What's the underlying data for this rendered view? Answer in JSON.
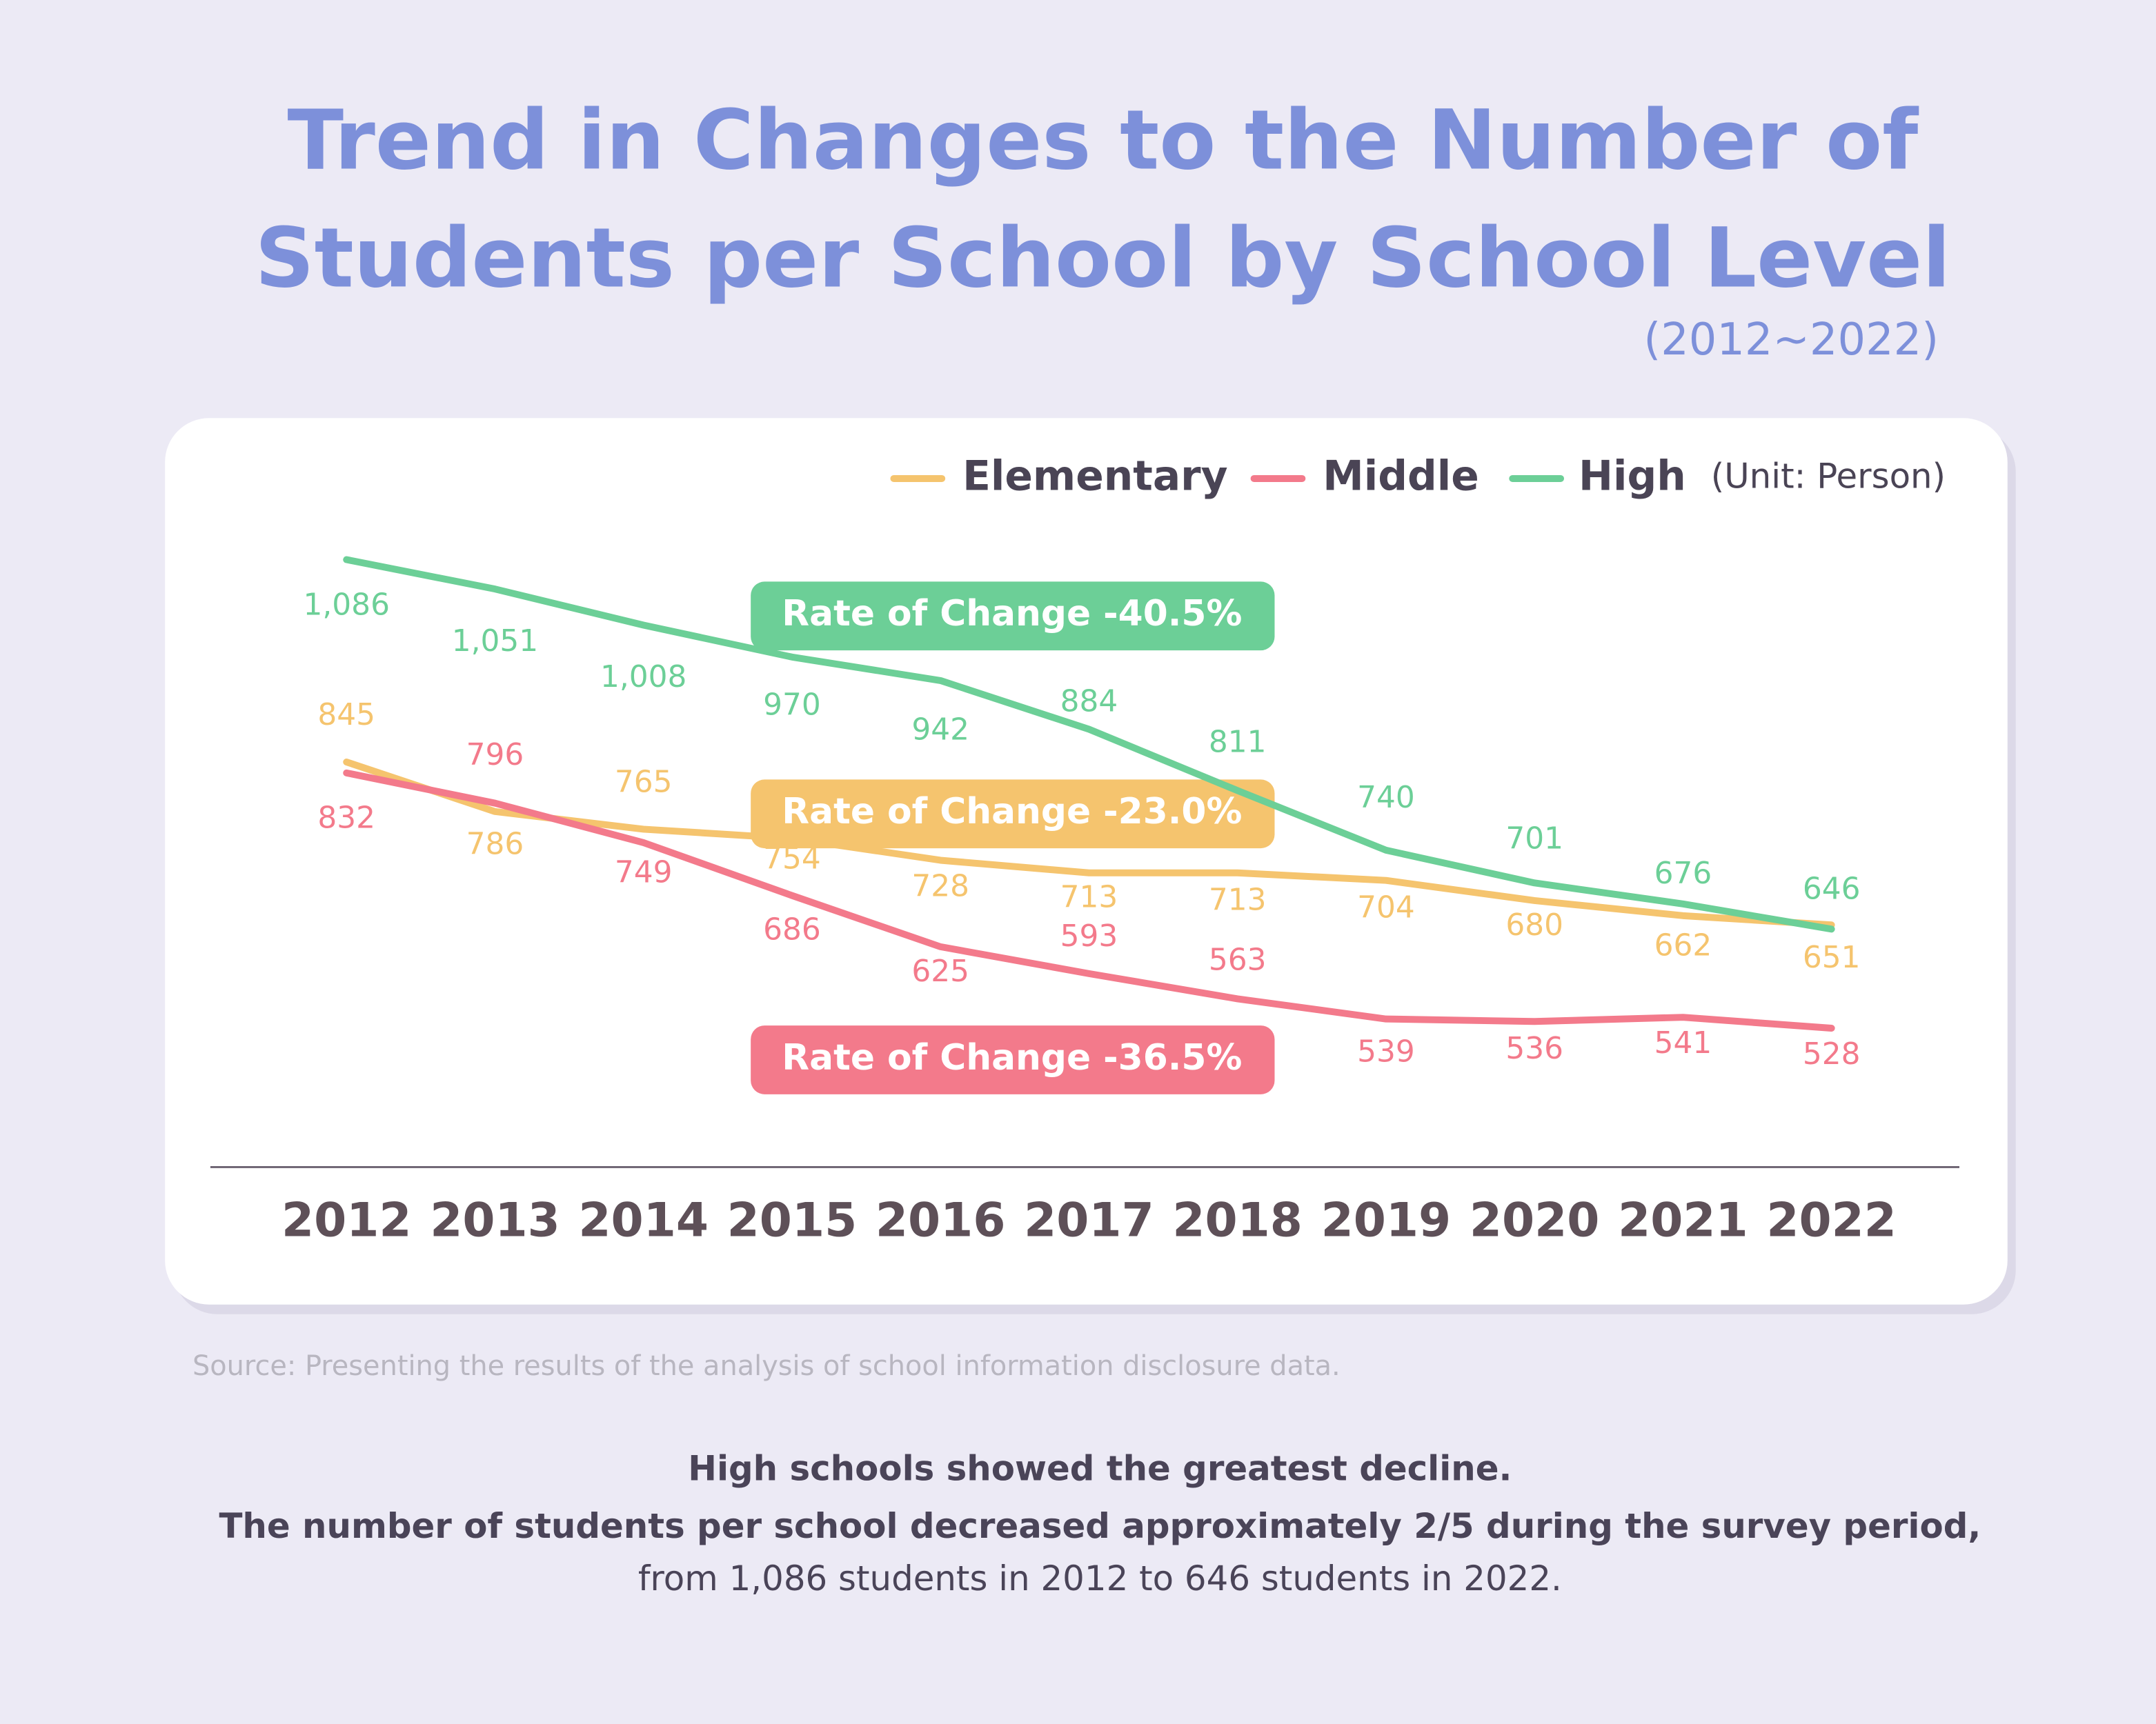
{
  "chart_data": {
    "type": "line",
    "title": [
      "Trend in Changes to the Number of",
      "Students per School by School Level"
    ],
    "subtitle": "(2012~2022)",
    "unit": "(Unit: Person)",
    "legend": "top-right",
    "categories": [
      "2012",
      "2013",
      "2014",
      "2015",
      "2016",
      "2017",
      "2018",
      "2019",
      "2020",
      "2021",
      "2022"
    ],
    "series": [
      {
        "name": "Elementary",
        "color": "#f5c46e",
        "values": [
          845,
          786,
          765,
          754,
          728,
          713,
          713,
          704,
          680,
          662,
          651
        ]
      },
      {
        "name": "Middle",
        "color": "#f37a8b",
        "values": [
          832,
          796,
          749,
          686,
          625,
          593,
          563,
          539,
          536,
          541,
          528
        ]
      },
      {
        "name": "High",
        "color": "#6ccf97",
        "values": [
          1086,
          1051,
          1008,
          970,
          942,
          884,
          811,
          740,
          701,
          676,
          646
        ],
        "value_labels": [
          "1,086",
          "1,051",
          "1,008",
          "970",
          "942",
          "884",
          "811",
          "740",
          "701",
          "676",
          "646"
        ]
      }
    ],
    "annotations": [
      {
        "text": "Rate of Change  -40.5%",
        "color": "#6ccf97"
      },
      {
        "text": "Rate of Change  -23.0%",
        "color": "#f5c46e"
      },
      {
        "text": "Rate of Change  -36.5%",
        "color": "#f37a8b"
      }
    ]
  },
  "source": "Source: Presenting the results of the analysis of school information disclosure data.",
  "summary": [
    "High schools showed the greatest decline.",
    "The number of students per school decreased approximately 2/5 during the survey period,",
    "from 1,086 students in 2012 to 646 students in 2022."
  ]
}
